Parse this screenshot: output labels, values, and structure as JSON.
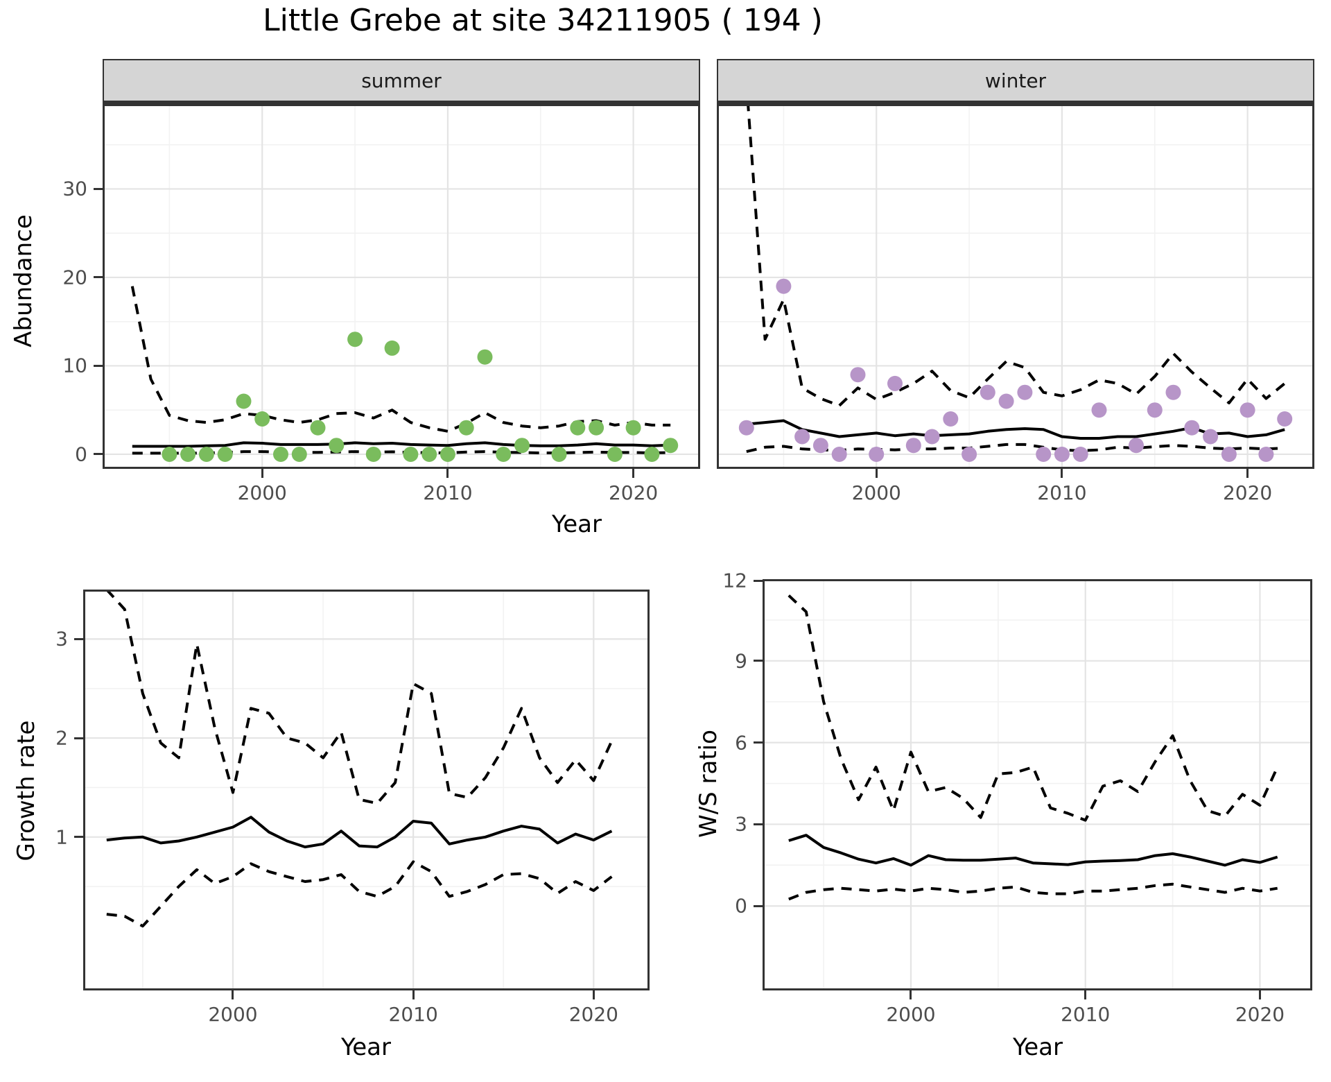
{
  "title": "Little Grebe at site 34211905 ( 194 )",
  "facets": {
    "summer": "summer",
    "winter": "winter"
  },
  "axis_titles": {
    "abundance": "Abundance",
    "year": "Year",
    "growth": "Growth rate",
    "ws": "W/S ratio"
  },
  "colors": {
    "summer_point": "#7abc5d",
    "winter_point": "#b795c8",
    "line": "#000000",
    "grid_major": "#e4e4e4",
    "grid_minor": "#f2f2f2",
    "panel_border": "#333333",
    "strip_bg": "#d5d5d5",
    "tick_text": "#4d4d4d"
  },
  "chart_data": [
    {
      "id": "abundance-summer",
      "type": "line",
      "facet": "summer",
      "ylabel": "Abundance",
      "xlabel": "Year",
      "x": [
        1993,
        1994,
        1995,
        1996,
        1997,
        1998,
        1999,
        2000,
        2001,
        2002,
        2003,
        2004,
        2005,
        2006,
        2007,
        2008,
        2009,
        2010,
        2011,
        2012,
        2013,
        2014,
        2015,
        2016,
        2017,
        2018,
        2019,
        2020,
        2021,
        2022
      ],
      "series": [
        {
          "name": "median",
          "style": "solid",
          "values": [
            0.9,
            0.9,
            0.9,
            0.9,
            0.95,
            1.0,
            1.3,
            1.25,
            1.1,
            1.1,
            1.1,
            1.15,
            1.3,
            1.2,
            1.25,
            1.1,
            1.05,
            1.0,
            1.2,
            1.3,
            1.1,
            1.0,
            0.95,
            0.95,
            1.05,
            1.2,
            1.05,
            1.05,
            0.95,
            1.05
          ]
        },
        {
          "name": "upper_ci",
          "style": "dashed",
          "values": [
            19,
            8.5,
            4.4,
            3.8,
            3.6,
            3.9,
            4.6,
            4.4,
            3.9,
            3.6,
            3.9,
            4.6,
            4.7,
            4.1,
            5.0,
            3.6,
            3.0,
            2.6,
            3.5,
            4.7,
            3.6,
            3.2,
            3.0,
            3.2,
            3.7,
            3.8,
            3.3,
            3.6,
            3.3,
            3.3
          ]
        },
        {
          "name": "lower_ci",
          "style": "dashed",
          "values": [
            0.12,
            0.12,
            0.12,
            0.12,
            0.15,
            0.2,
            0.3,
            0.3,
            0.25,
            0.2,
            0.22,
            0.25,
            0.3,
            0.25,
            0.28,
            0.22,
            0.18,
            0.15,
            0.25,
            0.3,
            0.22,
            0.2,
            0.15,
            0.15,
            0.2,
            0.25,
            0.2,
            0.2,
            0.15,
            0.2
          ]
        }
      ],
      "points": {
        "x": [
          1995,
          1996,
          1997,
          1998,
          1999,
          2000,
          2001,
          2002,
          2003,
          2004,
          2005,
          2006,
          2007,
          2008,
          2009,
          2010,
          2011,
          2012,
          2013,
          2014,
          2016,
          2017,
          2018,
          2019,
          2020,
          2021,
          2022
        ],
        "y": [
          0,
          0,
          0,
          0,
          6,
          4,
          0,
          0,
          3,
          1,
          13,
          0,
          12,
          0,
          0,
          0,
          3,
          11,
          0,
          1,
          0,
          3,
          3,
          0,
          3,
          0,
          1
        ],
        "color": "#7abc5d"
      },
      "xlim": [
        1991.4,
        2023.6
      ],
      "ylim": [
        -1.65,
        39.6
      ],
      "xticks": [
        2000,
        2010,
        2020
      ],
      "xminor": [
        1995,
        2005,
        2015
      ],
      "yticks": [
        0,
        10,
        20,
        30
      ],
      "yminor": [
        5,
        15,
        25,
        35
      ],
      "show_y_labels": true
    },
    {
      "id": "abundance-winter",
      "type": "line",
      "facet": "winter",
      "ylabel": "Abundance",
      "xlabel": "Year",
      "x": [
        1993,
        1994,
        1995,
        1996,
        1997,
        1998,
        1999,
        2000,
        2001,
        2002,
        2003,
        2004,
        2005,
        2006,
        2007,
        2008,
        2009,
        2010,
        2011,
        2012,
        2013,
        2014,
        2015,
        2016,
        2017,
        2018,
        2019,
        2020,
        2021,
        2022
      ],
      "series": [
        {
          "name": "median",
          "style": "solid",
          "values": [
            3.4,
            3.6,
            3.8,
            2.8,
            2.4,
            2.0,
            2.2,
            2.4,
            2.1,
            2.3,
            2.1,
            2.2,
            2.3,
            2.6,
            2.8,
            2.9,
            2.8,
            2.0,
            1.8,
            1.8,
            2.0,
            2.0,
            2.3,
            2.6,
            3.0,
            2.3,
            2.4,
            2.0,
            2.2,
            2.8
          ]
        },
        {
          "name": "upper_ci",
          "style": "dashed",
          "values": [
            42,
            13,
            17.5,
            7.5,
            6.3,
            5.5,
            7.5,
            6.2,
            7.0,
            8.0,
            9.4,
            7.2,
            6.4,
            8.5,
            10.5,
            9.8,
            7.0,
            6.6,
            7.3,
            8.4,
            8.0,
            6.8,
            8.8,
            11.4,
            9.3,
            7.5,
            5.8,
            8.5,
            6.3,
            8.0
          ]
        },
        {
          "name": "lower_ci",
          "style": "dashed",
          "values": [
            0.3,
            0.8,
            0.9,
            0.6,
            0.5,
            0.45,
            0.6,
            0.55,
            0.5,
            0.6,
            0.6,
            0.7,
            0.7,
            0.9,
            1.1,
            1.1,
            0.8,
            0.5,
            0.4,
            0.5,
            0.8,
            0.7,
            0.85,
            1.0,
            0.9,
            0.7,
            0.6,
            0.7,
            0.6,
            0.7
          ]
        }
      ],
      "points": {
        "x": [
          1993,
          1995,
          1996,
          1997,
          1998,
          1999,
          2000,
          2001,
          2002,
          2003,
          2004,
          2005,
          2006,
          2007,
          2008,
          2009,
          2010,
          2011,
          2012,
          2014,
          2015,
          2016,
          2017,
          2018,
          2019,
          2020,
          2021,
          2022
        ],
        "y": [
          3,
          19,
          2,
          1,
          0,
          9,
          0,
          8,
          1,
          2,
          4,
          0,
          7,
          6,
          7,
          0,
          0,
          0,
          5,
          1,
          5,
          7,
          3,
          2,
          0,
          5,
          0,
          4
        ],
        "color": "#b795c8"
      },
      "xlim": [
        1991.4,
        2023.6
      ],
      "ylim": [
        -1.65,
        39.6
      ],
      "xticks": [
        2000,
        2010,
        2020
      ],
      "xminor": [
        1995,
        2005,
        2015
      ],
      "yticks": [
        0,
        10,
        20,
        30
      ],
      "yminor": [
        5,
        15,
        25,
        35
      ],
      "show_y_labels": false
    },
    {
      "id": "growth",
      "type": "line",
      "facet": null,
      "ylabel": "Growth rate",
      "xlabel": "Year",
      "x": [
        1993,
        1994,
        1995,
        1996,
        1997,
        1998,
        1999,
        2000,
        2001,
        2002,
        2003,
        2004,
        2005,
        2006,
        2007,
        2008,
        2009,
        2010,
        2011,
        2012,
        2013,
        2014,
        2015,
        2016,
        2017,
        2018,
        2019,
        2020,
        2021
      ],
      "series": [
        {
          "name": "median",
          "style": "solid",
          "values": [
            0.97,
            0.99,
            1.0,
            0.94,
            0.96,
            1.0,
            1.05,
            1.1,
            1.2,
            1.05,
            0.96,
            0.9,
            0.93,
            1.06,
            0.91,
            0.9,
            1.0,
            1.16,
            1.14,
            0.93,
            0.97,
            1.0,
            1.06,
            1.11,
            1.08,
            0.94,
            1.03,
            0.97,
            1.06
          ]
        },
        {
          "name": "upper_ci",
          "style": "dashed",
          "values": [
            3.5,
            3.3,
            2.45,
            1.95,
            1.8,
            2.95,
            2.1,
            1.45,
            2.3,
            2.25,
            2.0,
            1.95,
            1.8,
            2.06,
            1.38,
            1.34,
            1.55,
            2.55,
            2.45,
            1.44,
            1.4,
            1.6,
            1.9,
            2.3,
            1.8,
            1.55,
            1.78,
            1.57,
            1.97
          ]
        },
        {
          "name": "lower_ci",
          "style": "dashed",
          "values": [
            0.22,
            0.2,
            0.1,
            0.3,
            0.5,
            0.67,
            0.53,
            0.6,
            0.73,
            0.65,
            0.6,
            0.55,
            0.57,
            0.62,
            0.45,
            0.4,
            0.5,
            0.75,
            0.65,
            0.4,
            0.45,
            0.52,
            0.62,
            0.63,
            0.58,
            0.43,
            0.55,
            0.46,
            0.6
          ]
        }
      ],
      "points": null,
      "xlim": [
        1991.7,
        2023.1
      ],
      "ylim": [
        -0.55,
        3.5
      ],
      "xticks": [
        2000,
        2010,
        2020
      ],
      "xminor": [
        1995,
        2005,
        2015
      ],
      "yticks": [
        1,
        2,
        3
      ],
      "yminor": [
        0.5,
        1.5,
        2.5
      ],
      "show_y_labels": true
    },
    {
      "id": "ws",
      "type": "line",
      "facet": null,
      "ylabel": "W/S ratio",
      "xlabel": "Year",
      "x": [
        1993,
        1994,
        1995,
        1996,
        1997,
        1998,
        1999,
        2000,
        2001,
        2002,
        2003,
        2004,
        2005,
        2006,
        2007,
        2008,
        2009,
        2010,
        2011,
        2012,
        2013,
        2014,
        2015,
        2016,
        2017,
        2018,
        2019,
        2020,
        2021
      ],
      "series": [
        {
          "name": "median",
          "style": "solid",
          "values": [
            2.4,
            2.6,
            2.15,
            1.95,
            1.72,
            1.58,
            1.74,
            1.5,
            1.85,
            1.7,
            1.68,
            1.68,
            1.72,
            1.76,
            1.58,
            1.55,
            1.52,
            1.62,
            1.65,
            1.67,
            1.7,
            1.85,
            1.92,
            1.8,
            1.65,
            1.5,
            1.7,
            1.6,
            1.8
          ]
        },
        {
          "name": "upper_ci",
          "style": "dashed",
          "values": [
            11.4,
            10.8,
            7.5,
            5.4,
            3.9,
            5.1,
            3.5,
            5.65,
            4.2,
            4.35,
            3.95,
            3.25,
            4.85,
            4.9,
            5.1,
            3.6,
            3.4,
            3.15,
            4.4,
            4.6,
            4.2,
            5.3,
            6.25,
            4.6,
            3.5,
            3.3,
            4.1,
            3.7,
            5.1
          ]
        },
        {
          "name": "lower_ci",
          "style": "dashed",
          "values": [
            0.25,
            0.5,
            0.6,
            0.65,
            0.6,
            0.55,
            0.62,
            0.55,
            0.65,
            0.6,
            0.5,
            0.55,
            0.65,
            0.7,
            0.5,
            0.45,
            0.45,
            0.55,
            0.55,
            0.6,
            0.65,
            0.75,
            0.8,
            0.7,
            0.6,
            0.5,
            0.65,
            0.55,
            0.65
          ]
        }
      ],
      "points": null,
      "xlim": [
        1991.5,
        2023.0
      ],
      "ylim": [
        -3.1,
        12.0
      ],
      "xticks": [
        2000,
        2010,
        2020
      ],
      "xminor": [
        1995,
        2005,
        2015
      ],
      "yticks": [
        0,
        3,
        6,
        9,
        12
      ],
      "yminor": [
        1.5,
        4.5,
        7.5,
        10.5
      ],
      "show_y_labels": true
    }
  ]
}
